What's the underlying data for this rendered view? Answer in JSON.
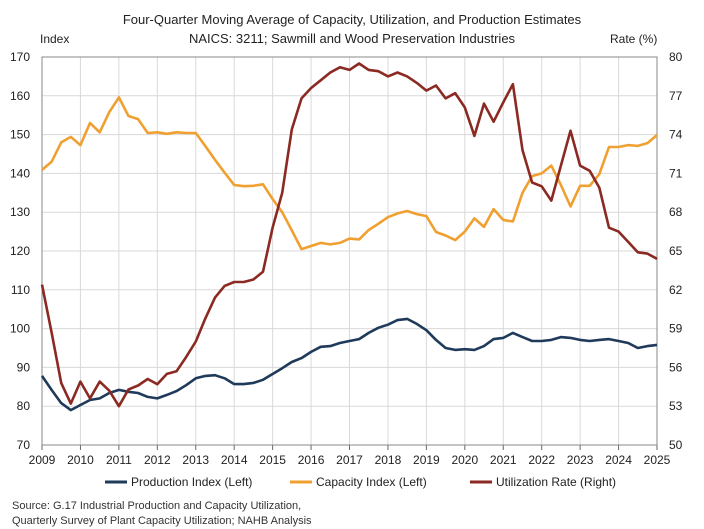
{
  "chart_data": {
    "type": "line",
    "title": "Four-Quarter Moving Average of Capacity, Utilization, and Production Estimates",
    "subtitle": "NAICS: 3211; Sawmill and Wood Preservation Industries",
    "ylabel_left": "Index",
    "ylabel_right": "Rate (%)",
    "ylim_left": [
      70,
      170
    ],
    "ylim_right": [
      50,
      80
    ],
    "yticks_left": [
      "70",
      "80",
      "90",
      "100",
      "110",
      "120",
      "130",
      "140",
      "150",
      "160",
      "170"
    ],
    "yticks_right": [
      "50",
      "53",
      "56",
      "59",
      "62",
      "65",
      "68",
      "71",
      "74",
      "77",
      "80"
    ],
    "xticks": [
      "2009",
      "2010",
      "2011",
      "2012",
      "2013",
      "2014",
      "2015",
      "2016",
      "2017",
      "2018",
      "2019",
      "2020",
      "2021",
      "2022",
      "2023",
      "2024",
      "2025"
    ],
    "x_start": 2009,
    "x_step_years": 0.25,
    "grid": true,
    "legend_position": "bottom",
    "series": [
      {
        "name": "Production Index (Left)",
        "axis": "left",
        "color": "#1f3a5a",
        "values": [
          87.8,
          84.2,
          80.8,
          79.0,
          80.3,
          81.6,
          82.0,
          83.4,
          84.2,
          83.7,
          83.4,
          82.4,
          82.0,
          82.9,
          83.9,
          85.4,
          87.2,
          87.8,
          88.0,
          87.2,
          85.7,
          85.7,
          86.0,
          86.8,
          88.3,
          89.8,
          91.4,
          92.4,
          94.0,
          95.3,
          95.5,
          96.3,
          96.8,
          97.3,
          98.9,
          100.2,
          101.0,
          102.2,
          102.5,
          101.2,
          99.6,
          97.1,
          95.0,
          94.5,
          94.7,
          94.5,
          95.5,
          97.3,
          97.6,
          98.9,
          97.8,
          96.8,
          96.8,
          97.1,
          97.8,
          97.6,
          97.1,
          96.8,
          97.1,
          97.3,
          96.8,
          96.3,
          95.0,
          95.5,
          95.8
        ]
      },
      {
        "name": "Capacity Index (Left)",
        "axis": "left",
        "color": "#f0a030",
        "values": [
          140.9,
          143.0,
          148.0,
          149.4,
          147.3,
          153.0,
          150.6,
          155.8,
          159.6,
          154.8,
          154.0,
          150.4,
          150.6,
          150.2,
          150.6,
          150.4,
          150.4,
          147.0,
          143.5,
          140.2,
          137.0,
          136.7,
          136.8,
          137.2,
          133.4,
          130.0,
          125.3,
          120.5,
          121.3,
          122.1,
          121.7,
          122.1,
          123.2,
          123.0,
          125.4,
          127.0,
          128.7,
          129.7,
          130.3,
          129.5,
          129.0,
          124.9,
          124.0,
          122.8,
          125.0,
          128.4,
          126.2,
          130.8,
          128.0,
          127.6,
          135.0,
          139.3,
          140.0,
          142.0,
          137.0,
          131.5,
          136.8,
          136.8,
          139.8,
          146.8,
          146.8,
          147.3,
          147.1,
          147.8,
          149.9
        ]
      },
      {
        "name": "Utilization Rate (Right)",
        "axis": "right",
        "color": "#8b2a22",
        "values": [
          62.4,
          58.7,
          54.8,
          53.2,
          54.9,
          53.6,
          54.9,
          54.2,
          53.0,
          54.3,
          54.6,
          55.1,
          54.7,
          55.5,
          55.7,
          56.8,
          58.0,
          59.8,
          61.4,
          62.3,
          62.6,
          62.6,
          62.8,
          63.4,
          66.8,
          69.5,
          74.4,
          76.8,
          77.6,
          78.2,
          78.8,
          79.2,
          79.0,
          79.5,
          79.0,
          78.9,
          78.5,
          78.8,
          78.5,
          78.0,
          77.4,
          77.8,
          76.8,
          77.2,
          76.1,
          73.9,
          76.4,
          75.0,
          76.5,
          77.9,
          72.8,
          70.3,
          70.0,
          68.9,
          71.6,
          74.3,
          71.6,
          71.2,
          69.9,
          66.8,
          66.5,
          65.7,
          64.9,
          64.8,
          64.4
        ]
      }
    ],
    "source": "Source: G.17 Industrial Production and Capacity Utilization,",
    "source_line2": "Quarterly Survey of Plant Capacity Utilization; NAHB Analysis"
  }
}
